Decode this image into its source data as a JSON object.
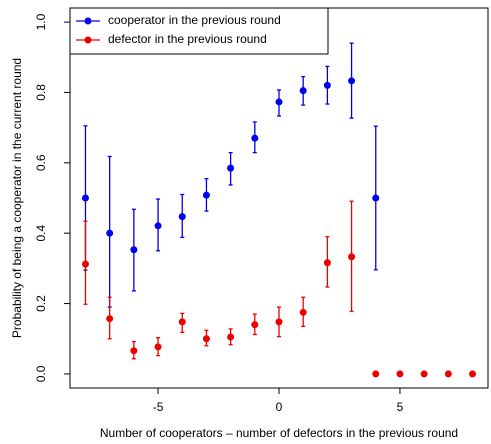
{
  "chart_data": {
    "type": "scatter",
    "xlabel": "Number of cooperators – number of defectors in the previous round",
    "ylabel": "Probability of being a cooperator in the current round",
    "xlim": [
      -8.64,
      8.64
    ],
    "ylim": [
      -0.04,
      1.04
    ],
    "xticks": [
      -5,
      0,
      5
    ],
    "yticks": [
      {
        "value": 0,
        "label": "0.0"
      },
      0.2,
      0.4,
      0.6,
      0.8,
      {
        "value": 1,
        "label": "1.0"
      }
    ],
    "legend": "top-left",
    "series": [
      {
        "name": "cooperator in the previous round",
        "color": "#0000ee",
        "x": [
          -8,
          -7,
          -6,
          -5,
          -4,
          -3,
          -2,
          -1,
          0,
          1,
          2,
          3,
          4
        ],
        "values": [
          0.5,
          0.4,
          0.353,
          0.421,
          0.447,
          0.508,
          0.585,
          0.67,
          0.773,
          0.805,
          0.82,
          0.833,
          0.5
        ],
        "lower": [
          0.295,
          0.19,
          0.236,
          0.35,
          0.388,
          0.463,
          0.537,
          0.629,
          0.733,
          0.764,
          0.767,
          0.727,
          0.296
        ],
        "upper": [
          0.705,
          0.618,
          0.468,
          0.497,
          0.51,
          0.555,
          0.629,
          0.716,
          0.807,
          0.845,
          0.874,
          0.94,
          0.704
        ]
      },
      {
        "name": "defector in the previous round",
        "color": "#ee0000",
        "x": [
          -8,
          -7,
          -6,
          -5,
          -4,
          -3,
          -2,
          -1,
          0,
          1,
          2,
          3,
          4,
          5,
          6,
          7,
          8
        ],
        "values": [
          0.312,
          0.157,
          0.066,
          0.077,
          0.148,
          0.1,
          0.105,
          0.14,
          0.148,
          0.175,
          0.316,
          0.333,
          0,
          0,
          0,
          0,
          0
        ],
        "lower": [
          0.198,
          0.1,
          0.043,
          0.052,
          0.118,
          0.08,
          0.083,
          0.112,
          0.106,
          0.135,
          0.247,
          0.178,
          null,
          null,
          null,
          null,
          null
        ],
        "upper": [
          0.434,
          0.218,
          0.092,
          0.103,
          0.172,
          0.124,
          0.128,
          0.17,
          0.19,
          0.218,
          0.39,
          0.491,
          null,
          null,
          null,
          null,
          null
        ]
      }
    ]
  }
}
